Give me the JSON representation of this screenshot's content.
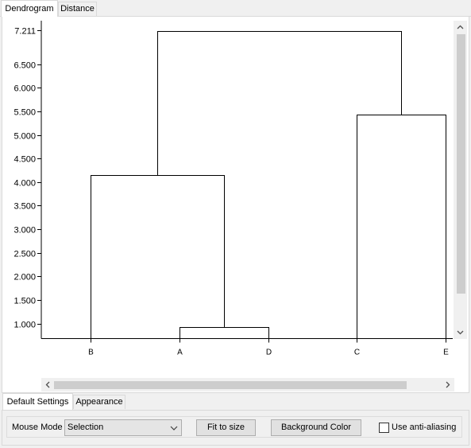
{
  "tabs": [
    {
      "label": "Dendrogram",
      "active": true
    },
    {
      "label": "Distance",
      "active": false
    }
  ],
  "chart_data": {
    "type": "dendrogram",
    "ylim": [
      0.7,
      7.3
    ],
    "y_ticks": [
      {
        "value": 7.211,
        "label": "7.211"
      },
      {
        "value": 6.5,
        "label": "6.500"
      },
      {
        "value": 6.0,
        "label": "6.000"
      },
      {
        "value": 5.5,
        "label": "5.500"
      },
      {
        "value": 5.0,
        "label": "5.000"
      },
      {
        "value": 4.5,
        "label": "4.500"
      },
      {
        "value": 4.0,
        "label": "4.000"
      },
      {
        "value": 3.5,
        "label": "3.500"
      },
      {
        "value": 3.0,
        "label": "3.000"
      },
      {
        "value": 2.5,
        "label": "2.500"
      },
      {
        "value": 2.0,
        "label": "2.000"
      },
      {
        "value": 1.5,
        "label": "1.500"
      },
      {
        "value": 1.0,
        "label": "1.000"
      }
    ],
    "leaves": [
      "B",
      "A",
      "D",
      "C",
      "E"
    ],
    "merges": [
      {
        "left": "A",
        "right": "D",
        "height": 0.93
      },
      {
        "left": "B",
        "right": "A+D",
        "height": 4.15
      },
      {
        "left": "C",
        "right": "E",
        "height": 5.43
      },
      {
        "left": "B+A+D",
        "right": "C+E",
        "height": 7.21
      }
    ]
  },
  "bottom_tabs": [
    {
      "label": "Default Settings",
      "active": true
    },
    {
      "label": "Appearance",
      "active": false
    }
  ],
  "settings": {
    "mouse_mode_label": "Mouse Mode",
    "mouse_mode_value": "Selection",
    "fit_label": "Fit to size",
    "bg_color_label": "Background Color",
    "anti_alias_label": "Use anti-aliasing",
    "anti_alias_checked": false
  },
  "icons": {
    "scroll_up": "chevron-up-icon",
    "scroll_down": "chevron-down-icon",
    "scroll_left": "chevron-left-icon",
    "scroll_right": "chevron-right-icon",
    "dropdown": "chevron-down-icon"
  }
}
